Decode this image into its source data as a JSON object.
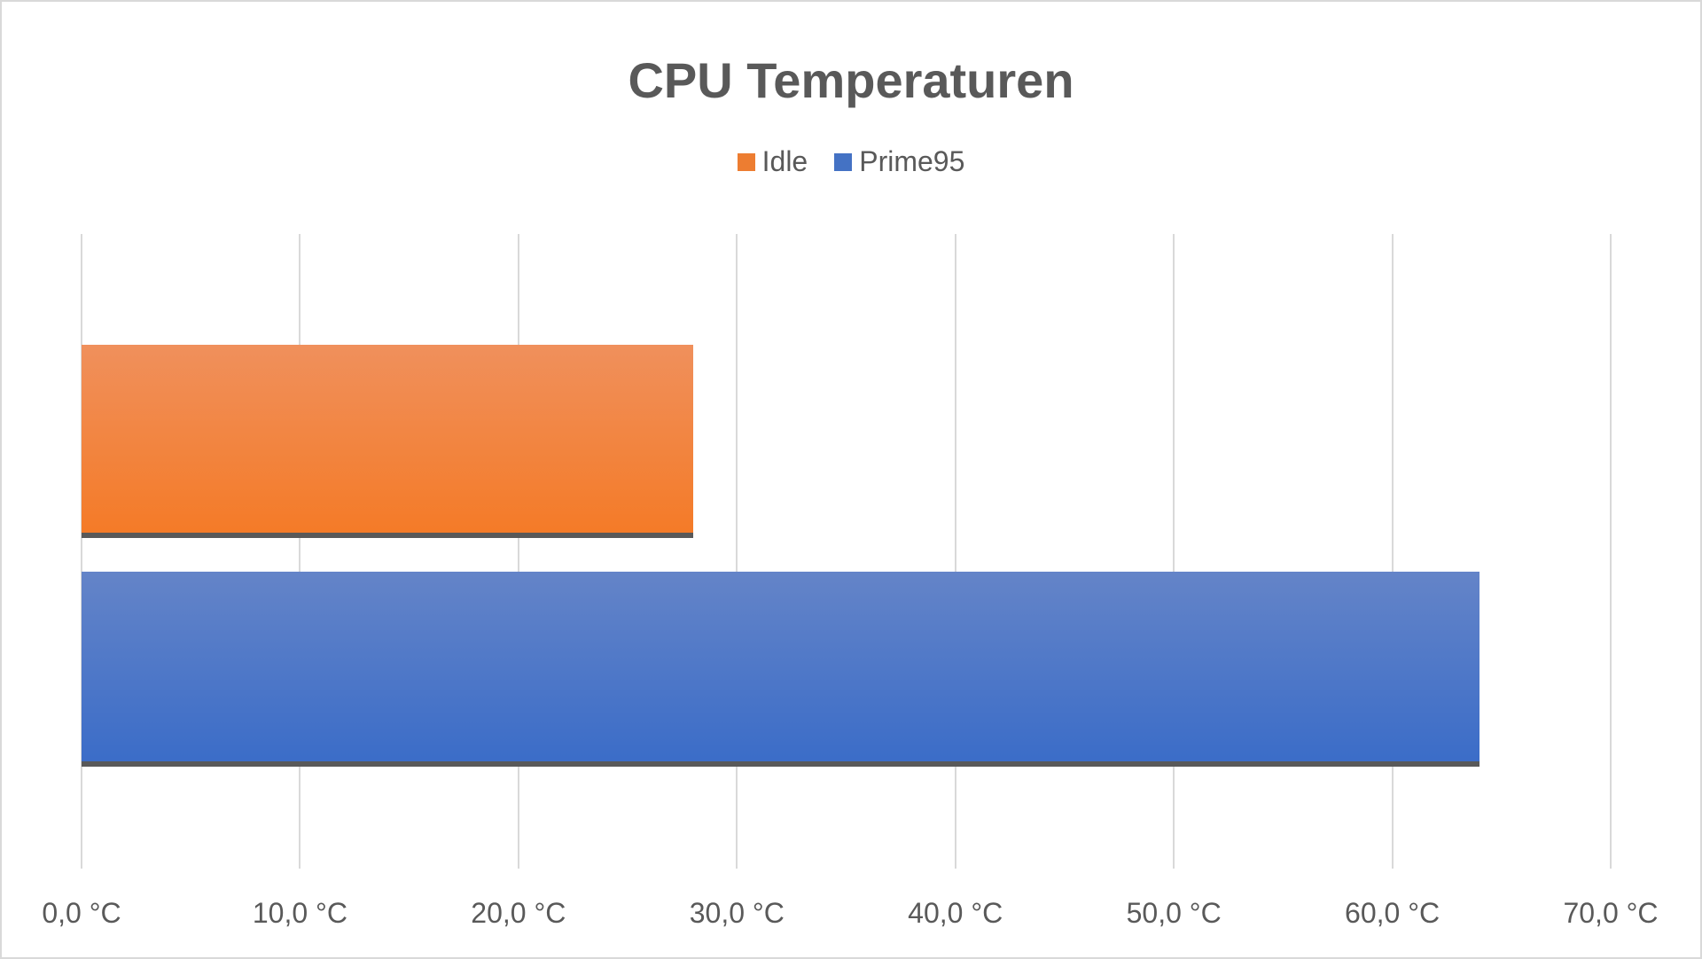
{
  "chart_data": {
    "type": "bar",
    "orientation": "horizontal",
    "title": "CPU Temperaturen",
    "xlabel": "",
    "ylabel": "",
    "xlim": [
      0,
      70
    ],
    "grid": true,
    "legend_position": "top",
    "categories": [
      ""
    ],
    "series": [
      {
        "name": "Idle",
        "values": [
          28.0
        ],
        "color": "#ED7D31"
      },
      {
        "name": "Prime95",
        "values": [
          64.0
        ],
        "color": "#4472C4"
      }
    ],
    "tick_labels": [
      "0,0 °C",
      "10,0 °C",
      "20,0 °C",
      "30,0 °C",
      "40,0 °C",
      "50,0 °C",
      "60,0 °C",
      "70,0 °C"
    ]
  },
  "title": "CPU Temperaturen",
  "legend": [
    {
      "label": "Idle",
      "color": "#ED7D31"
    },
    {
      "label": "Prime95",
      "color": "#4472C4"
    }
  ],
  "axis": {
    "ticks": [
      "0,0 °C",
      "10,0 °C",
      "20,0 °C",
      "30,0 °C",
      "40,0 °C",
      "50,0 °C",
      "60,0 °C",
      "70,0 °C"
    ]
  }
}
